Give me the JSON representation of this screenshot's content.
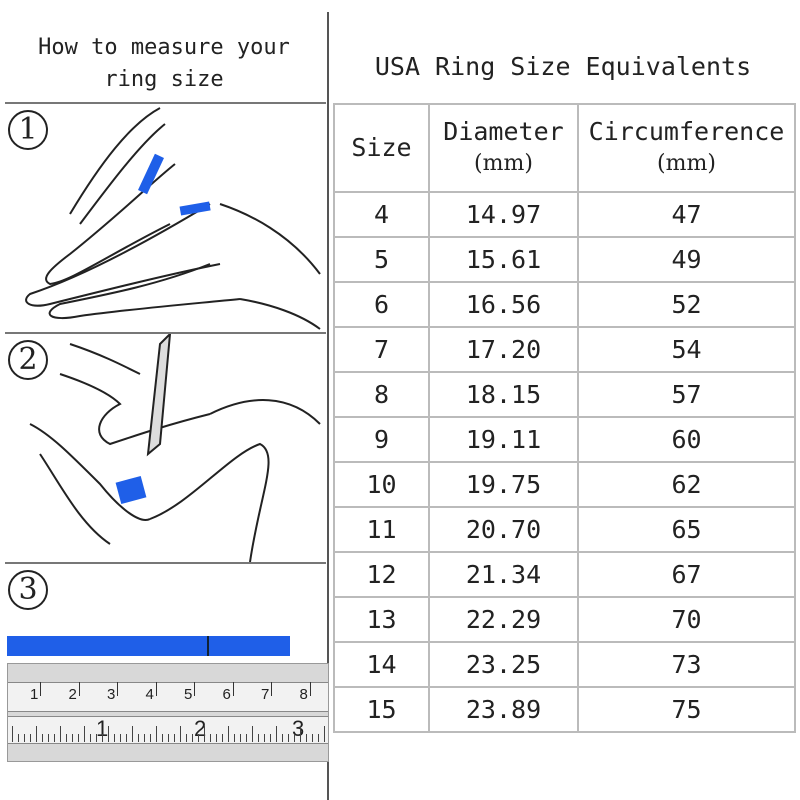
{
  "left_panel": {
    "title_line1": "How to measure your",
    "title_line2": "ring size",
    "steps": [
      "1",
      "2",
      "3"
    ],
    "ruler": {
      "cm_labels": [
        "1",
        "2",
        "3",
        "4",
        "5",
        "6",
        "7",
        "8"
      ],
      "inch_labels": [
        "1",
        "2",
        "3"
      ]
    },
    "accent_color": "#1f5fe8"
  },
  "table": {
    "title": "USA Ring Size Equivalents",
    "headers": {
      "size": "Size",
      "diameter": "Diameter",
      "diameter_unit": "(mm)",
      "circumference": "Circumference",
      "circumference_unit": "(mm)"
    },
    "rows": [
      {
        "size": "4",
        "diameter": "14.97",
        "circumference": "47"
      },
      {
        "size": "5",
        "diameter": "15.61",
        "circumference": "49"
      },
      {
        "size": "6",
        "diameter": "16.56",
        "circumference": "52"
      },
      {
        "size": "7",
        "diameter": "17.20",
        "circumference": "54"
      },
      {
        "size": "8",
        "diameter": "18.15",
        "circumference": "57"
      },
      {
        "size": "9",
        "diameter": "19.11",
        "circumference": "60"
      },
      {
        "size": "10",
        "diameter": "19.75",
        "circumference": "62"
      },
      {
        "size": "11",
        "diameter": "20.70",
        "circumference": "65"
      },
      {
        "size": "12",
        "diameter": "21.34",
        "circumference": "67"
      },
      {
        "size": "13",
        "diameter": "22.29",
        "circumference": "70"
      },
      {
        "size": "14",
        "diameter": "23.25",
        "circumference": "73"
      },
      {
        "size": "15",
        "diameter": "23.89",
        "circumference": "75"
      }
    ]
  }
}
